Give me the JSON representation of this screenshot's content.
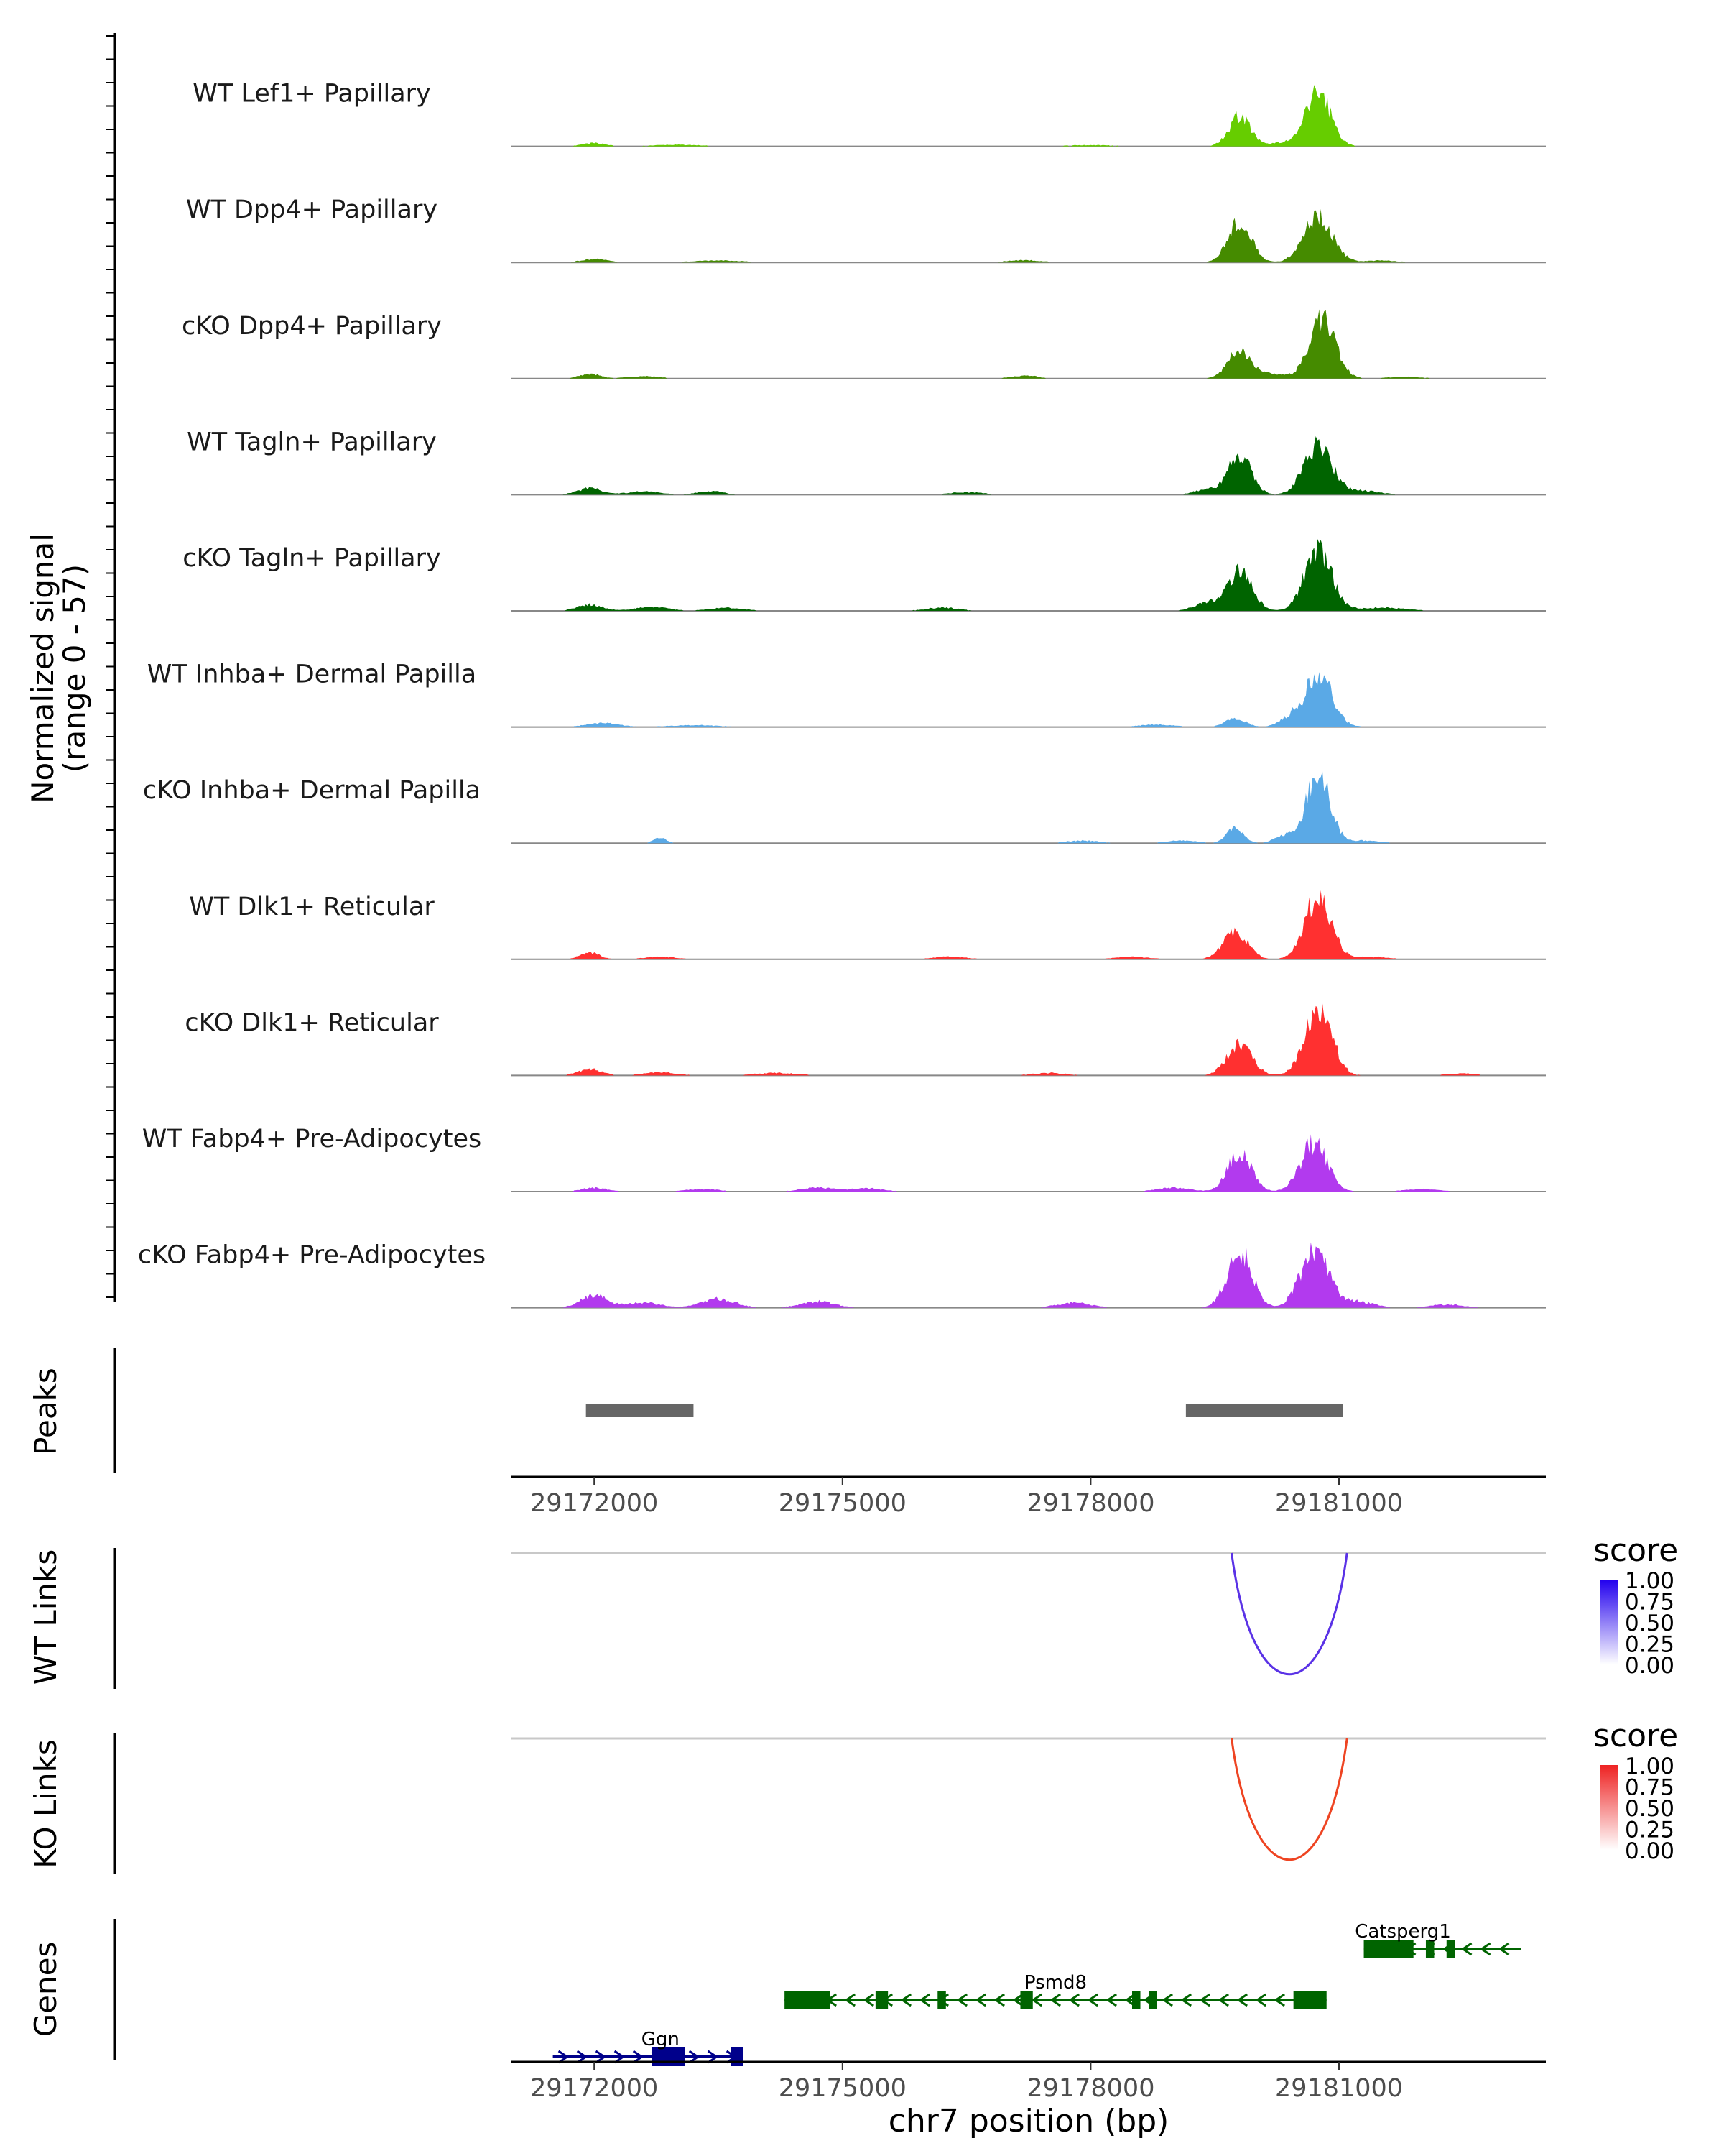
{
  "chart_data": {
    "type": "area",
    "title": "",
    "xlabel": "chr7 position (bp)",
    "ylabel_line1": "Normalized signal",
    "ylabel_line2": "(range 0 - 57)",
    "xlim": [
      29171000,
      29183500
    ],
    "ylim": [
      0,
      57
    ],
    "x_ticks": [
      29172000,
      29175000,
      29178000,
      29181000
    ],
    "x_tick_labels": [
      "29172000",
      "29175000",
      "29178000",
      "29181000"
    ],
    "tracks": [
      {
        "name": "WT Lef1+ Papillary",
        "color": "#66CD00",
        "peaks": [
          [
            29172000,
            2.5,
            140
          ],
          [
            29173000,
            1.2,
            300
          ],
          [
            29178000,
            1.0,
            300
          ],
          [
            29179800,
            24,
            130
          ],
          [
            29180750,
            43,
            150
          ],
          [
            29180300,
            3,
            120
          ]
        ]
      },
      {
        "name": "WT Dpp4+ Papillary",
        "color": "#458B00",
        "peaks": [
          [
            29172000,
            2.8,
            150
          ],
          [
            29173500,
            1.5,
            300
          ],
          [
            29177200,
            1.8,
            200
          ],
          [
            29179800,
            31,
            140
          ],
          [
            29180750,
            37,
            170
          ],
          [
            29181500,
            1.5,
            200
          ]
        ]
      },
      {
        "name": "cKO Dpp4+ Papillary",
        "color": "#458B00",
        "peaks": [
          [
            29171950,
            4,
            120
          ],
          [
            29172600,
            1.8,
            200
          ],
          [
            29177200,
            2.5,
            150
          ],
          [
            29179800,
            23,
            140
          ],
          [
            29180800,
            46,
            160
          ],
          [
            29180200,
            4,
            150
          ],
          [
            29181800,
            1.5,
            200
          ]
        ]
      },
      {
        "name": "WT Tagln+ Papillary",
        "color": "#006400",
        "peaks": [
          [
            29171950,
            5,
            150
          ],
          [
            29172600,
            2.5,
            200
          ],
          [
            29173400,
            3,
            150
          ],
          [
            29176500,
            2,
            200
          ],
          [
            29179400,
            4,
            150
          ],
          [
            29179800,
            30,
            140
          ],
          [
            29180750,
            38,
            170
          ],
          [
            29181300,
            3,
            200
          ]
        ]
      },
      {
        "name": "cKO Tagln+ Papillary",
        "color": "#006400",
        "peaks": [
          [
            29171950,
            5,
            150
          ],
          [
            29172700,
            3,
            200
          ],
          [
            29173600,
            2.5,
            200
          ],
          [
            29176200,
            2.5,
            200
          ],
          [
            29179400,
            6,
            150
          ],
          [
            29179800,
            31,
            150
          ],
          [
            29180750,
            50,
            160
          ],
          [
            29181500,
            2.5,
            300
          ]
        ]
      },
      {
        "name": "WT Inhba+ Dermal Papilla",
        "color": "#5AA9E6",
        "peaks": [
          [
            29172100,
            3,
            200
          ],
          [
            29173200,
            1.5,
            300
          ],
          [
            29178800,
            2,
            200
          ],
          [
            29179750,
            7,
            120
          ],
          [
            29180400,
            8,
            120
          ],
          [
            29180750,
            43,
            150
          ],
          [
            29181000,
            2,
            150
          ]
        ]
      },
      {
        "name": "cKO Inhba+ Dermal Papilla",
        "color": "#5AA9E6",
        "peaks": [
          [
            29172800,
            4,
            80
          ],
          [
            29177900,
            2,
            200
          ],
          [
            29179100,
            2,
            200
          ],
          [
            29179750,
            12,
            100
          ],
          [
            29180350,
            6,
            120
          ],
          [
            29180750,
            56,
            140
          ],
          [
            29181300,
            2,
            200
          ]
        ]
      },
      {
        "name": "WT Dlk1+ Reticular",
        "color": "#FF3030",
        "peaks": [
          [
            29171950,
            5,
            120
          ],
          [
            29172800,
            2,
            200
          ],
          [
            29176300,
            2,
            200
          ],
          [
            29178500,
            2,
            200
          ],
          [
            29179750,
            21,
            150
          ],
          [
            29180750,
            50,
            160
          ],
          [
            29181400,
            2,
            200
          ]
        ]
      },
      {
        "name": "cKO Dlk1+ Reticular",
        "color": "#FF3030",
        "peaks": [
          [
            29171950,
            5,
            140
          ],
          [
            29172800,
            2.5,
            200
          ],
          [
            29174200,
            2,
            250
          ],
          [
            29177500,
            2,
            200
          ],
          [
            29179800,
            25,
            150
          ],
          [
            29180750,
            56,
            160
          ],
          [
            29182500,
            1.5,
            200
          ]
        ]
      },
      {
        "name": "WT Fabp4+ Pre-Adipocytes",
        "color": "#B23AEE",
        "peaks": [
          [
            29172000,
            3,
            150
          ],
          [
            29173300,
            2,
            200
          ],
          [
            29174700,
            3,
            200
          ],
          [
            29175300,
            2.5,
            200
          ],
          [
            29179000,
            3,
            200
          ],
          [
            29179800,
            31,
            140
          ],
          [
            29180700,
            38,
            160
          ],
          [
            29182000,
            2,
            200
          ]
        ]
      },
      {
        "name": "cKO Fabp4+ Pre-Adipocytes",
        "color": "#B23AEE",
        "peaks": [
          [
            29172000,
            10,
            160
          ],
          [
            29172600,
            4,
            200
          ],
          [
            29173500,
            7,
            200
          ],
          [
            29174700,
            5,
            200
          ],
          [
            29177800,
            4,
            200
          ],
          [
            29179800,
            45,
            150
          ],
          [
            29180700,
            44,
            170
          ],
          [
            29181200,
            5,
            200
          ],
          [
            29182300,
            2.5,
            200
          ]
        ]
      }
    ],
    "peaks_track": {
      "label": "Peaks",
      "regions": [
        [
          29171900,
          29173200
        ],
        [
          29179150,
          29181050
        ]
      ]
    },
    "links_tracks": [
      {
        "label": "WT Links",
        "color": "#5A32E6",
        "start": 29180050,
        "end": 29180750,
        "legend_title": "score",
        "legend_colors": [
          "#ffffff",
          "#2200EE"
        ]
      },
      {
        "label": "KO Links",
        "color": "#EE4422",
        "start": 29180050,
        "end": 29180750,
        "legend_title": "score",
        "legend_colors": [
          "#ffffff",
          "#EE2222"
        ]
      }
    ],
    "legend_ticks": [
      "1.00",
      "0.75",
      "0.50",
      "0.25",
      "0.00"
    ],
    "genes_track": {
      "label": "Genes",
      "genes": [
        {
          "name": "Catsperg1",
          "color": "#006400",
          "strand": "-",
          "row": 0,
          "start": 29181300,
          "end": 29183200,
          "exons": [
            [
              29181300,
              29181900
            ],
            [
              29182050,
              29182150
            ],
            [
              29182300,
              29182400
            ]
          ]
        },
        {
          "name": "Psmd8",
          "color": "#006400",
          "strand": "-",
          "row": 1,
          "start": 29174300,
          "end": 29180850,
          "exons": [
            [
              29174300,
              29174850
            ],
            [
              29175400,
              29175550
            ],
            [
              29176150,
              29176250
            ],
            [
              29177150,
              29177300
            ],
            [
              29178500,
              29178600
            ],
            [
              29178700,
              29178800
            ],
            [
              29180450,
              29180850
            ]
          ]
        },
        {
          "name": "Ggn",
          "color": "#00008B",
          "strand": "+",
          "row": 2,
          "start": 29171500,
          "end": 29173800,
          "exons": [
            [
              29172700,
              29173100
            ],
            [
              29173650,
              29173800
            ]
          ]
        }
      ]
    }
  }
}
